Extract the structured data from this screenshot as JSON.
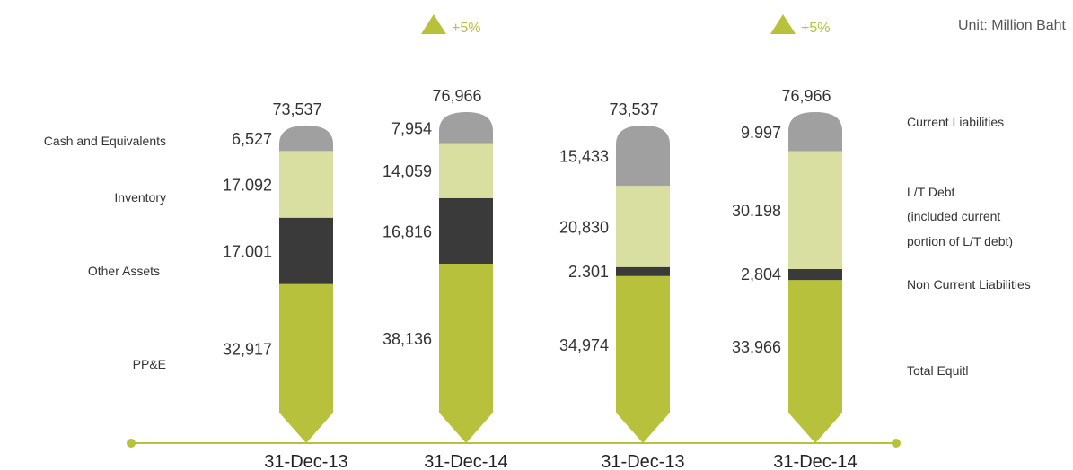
{
  "unit_label": "Unit: Million Baht",
  "chart_data": {
    "type": "bar",
    "stacked": true,
    "unit": "Million Baht",
    "categories": [
      "31-Dec-13",
      "31-Dec-14",
      "31-Dec-13",
      "31-Dec-14"
    ],
    "bars": [
      {
        "group": "assets",
        "category": "31-Dec-13",
        "total_label": "73,537",
        "growth_label": "",
        "segments": [
          {
            "series": "PP&E",
            "value": 32917,
            "label": "32,917",
            "color": "#b8c13c"
          },
          {
            "series": "Other Assets",
            "value": 17001,
            "label": "17.001",
            "color": "#3a3a3a"
          },
          {
            "series": "Inventory",
            "value": 17092,
            "label": "17.092",
            "color": "#d9dfa0"
          },
          {
            "series": "Cash and Equivalents",
            "value": 6527,
            "label": "6,527",
            "color": "#a0a0a0"
          }
        ]
      },
      {
        "group": "assets",
        "category": "31-Dec-14",
        "total_label": "76,966",
        "growth_label": "+5%",
        "segments": [
          {
            "series": "PP&E",
            "value": 38136,
            "label": "38,136",
            "color": "#b8c13c"
          },
          {
            "series": "Other Assets",
            "value": 16816,
            "label": "16,816",
            "color": "#3a3a3a"
          },
          {
            "series": "Inventory",
            "value": 14059,
            "label": "14,059",
            "color": "#d9dfa0"
          },
          {
            "series": "Cash and Equivalents",
            "value": 7954,
            "label": "7,954",
            "color": "#a0a0a0"
          }
        ]
      },
      {
        "group": "liabilities",
        "category": "31-Dec-13",
        "total_label": "73,537",
        "growth_label": "",
        "segments": [
          {
            "series": "Total Equitl",
            "value": 34974,
            "label": "34,974",
            "color": "#b8c13c"
          },
          {
            "series": "Non Current Liabilities",
            "value": 2301,
            "label": "2.301",
            "color": "#3a3a3a"
          },
          {
            "series": "L/T Debt",
            "value": 20830,
            "label": "20,830",
            "color": "#d9dfa0"
          },
          {
            "series": "Current Liabilities",
            "value": 15433,
            "label": "15,433",
            "color": "#a0a0a0"
          }
        ]
      },
      {
        "group": "liabilities",
        "category": "31-Dec-14",
        "total_label": "76,966",
        "growth_label": "+5%",
        "segments": [
          {
            "series": "Total Equitl",
            "value": 33966,
            "label": "33,966",
            "color": "#b8c13c"
          },
          {
            "series": "Non Current Liabilities",
            "value": 2804,
            "label": "2,804",
            "color": "#3a3a3a"
          },
          {
            "series": "L/T Debt",
            "value": 30198,
            "label": "30.198",
            "color": "#d9dfa0"
          },
          {
            "series": "Current Liabilities",
            "value": 9997,
            "label": "9.997",
            "color": "#a0a0a0"
          }
        ]
      }
    ],
    "left_legend": [
      "Cash and Equivalents",
      "Inventory",
      "Other Assets",
      "PP&E"
    ],
    "right_legend": [
      [
        "Current Liabilities"
      ],
      [
        "L/T Debt",
        "(included current",
        "portion of L/T debt)"
      ],
      [
        "Non Current Liabilities"
      ],
      [
        "Total Equitl"
      ]
    ],
    "colors": {
      "axis": "#b8c13c",
      "growth": "#b8c13c",
      "text": "#333333"
    }
  }
}
